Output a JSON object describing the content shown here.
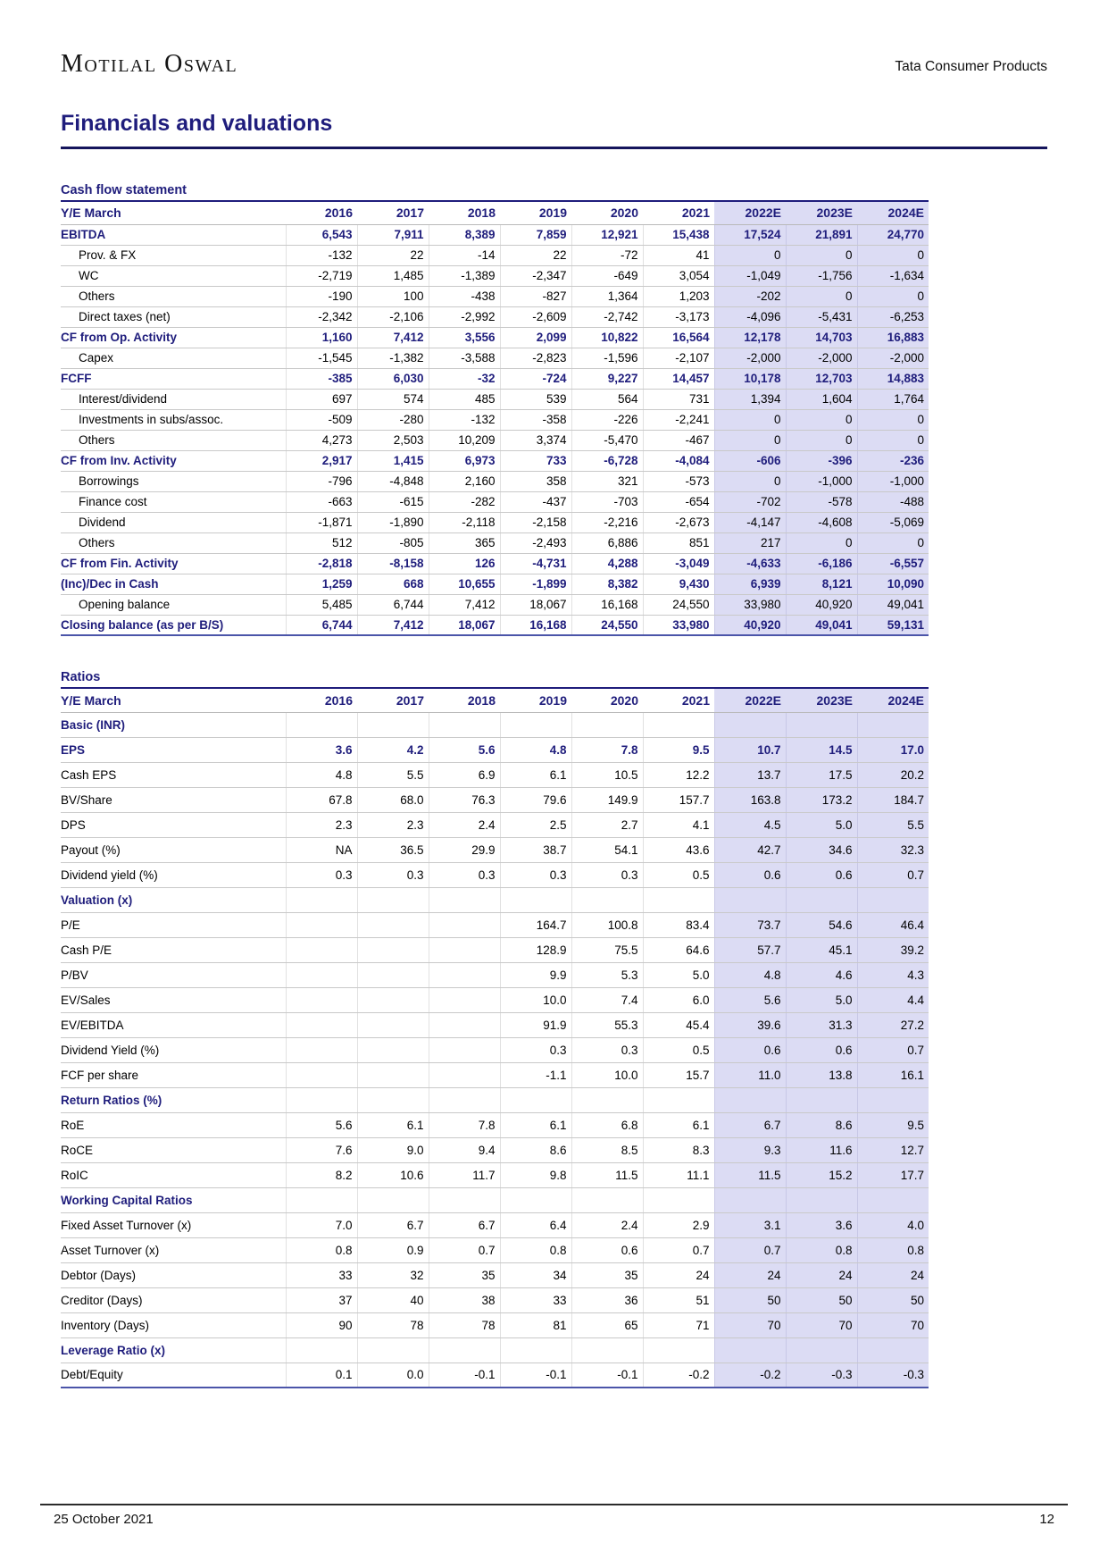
{
  "page": {
    "brand": "Motilal Oswal",
    "product": "Tata Consumer Products",
    "title": "Financials and valuations",
    "footer_date": "25 October 2021",
    "footer_page": "12"
  },
  "colors": {
    "navy_text": "#1f1d7c",
    "estimate_highlight": "#dcdcf4",
    "row_separator": "#c9c9c9",
    "table_bottom_border": "#4b55a9",
    "title_underline": "#15155c"
  },
  "tables": [
    {
      "id": "cashflow",
      "title": "Cash flow statement",
      "header_label": "Y/E March",
      "years": [
        "2016",
        "2017",
        "2018",
        "2019",
        "2020",
        "2021",
        "2022E",
        "2023E",
        "2024E"
      ],
      "highlight_from": 6,
      "rows": [
        {
          "label": "EBITDA",
          "style": "bold",
          "indent": false,
          "values": [
            "6,543",
            "7,911",
            "8,389",
            "7,859",
            "12,921",
            "15,438",
            "17,524",
            "21,891",
            "24,770"
          ]
        },
        {
          "label": "Prov. & FX",
          "style": "normal",
          "indent": true,
          "values": [
            "-132",
            "22",
            "-14",
            "22",
            "-72",
            "41",
            "0",
            "0",
            "0"
          ]
        },
        {
          "label": "WC",
          "style": "normal",
          "indent": true,
          "values": [
            "-2,719",
            "1,485",
            "-1,389",
            "-2,347",
            "-649",
            "3,054",
            "-1,049",
            "-1,756",
            "-1,634"
          ]
        },
        {
          "label": "Others",
          "style": "normal",
          "indent": true,
          "values": [
            "-190",
            "100",
            "-438",
            "-827",
            "1,364",
            "1,203",
            "-202",
            "0",
            "0"
          ]
        },
        {
          "label": "Direct taxes (net)",
          "style": "normal",
          "indent": true,
          "values": [
            "-2,342",
            "-2,106",
            "-2,992",
            "-2,609",
            "-2,742",
            "-3,173",
            "-4,096",
            "-5,431",
            "-6,253"
          ]
        },
        {
          "label": "CF from Op. Activity",
          "style": "bold",
          "indent": false,
          "values": [
            "1,160",
            "7,412",
            "3,556",
            "2,099",
            "10,822",
            "16,564",
            "12,178",
            "14,703",
            "16,883"
          ]
        },
        {
          "label": "Capex",
          "style": "normal",
          "indent": true,
          "values": [
            "-1,545",
            "-1,382",
            "-3,588",
            "-2,823",
            "-1,596",
            "-2,107",
            "-2,000",
            "-2,000",
            "-2,000"
          ]
        },
        {
          "label": "FCFF",
          "style": "bold",
          "indent": false,
          "values": [
            "-385",
            "6,030",
            "-32",
            "-724",
            "9,227",
            "14,457",
            "10,178",
            "12,703",
            "14,883"
          ]
        },
        {
          "label": "Interest/dividend",
          "style": "normal",
          "indent": true,
          "values": [
            "697",
            "574",
            "485",
            "539",
            "564",
            "731",
            "1,394",
            "1,604",
            "1,764"
          ]
        },
        {
          "label": "Investments in subs/assoc.",
          "style": "normal",
          "indent": true,
          "values": [
            "-509",
            "-280",
            "-132",
            "-358",
            "-226",
            "-2,241",
            "0",
            "0",
            "0"
          ]
        },
        {
          "label": "Others",
          "style": "normal",
          "indent": true,
          "values": [
            "4,273",
            "2,503",
            "10,209",
            "3,374",
            "-5,470",
            "-467",
            "0",
            "0",
            "0"
          ]
        },
        {
          "label": "CF from Inv. Activity",
          "style": "bold",
          "indent": false,
          "values": [
            "2,917",
            "1,415",
            "6,973",
            "733",
            "-6,728",
            "-4,084",
            "-606",
            "-396",
            "-236"
          ]
        },
        {
          "label": "Borrowings",
          "style": "normal",
          "indent": true,
          "values": [
            "-796",
            "-4,848",
            "2,160",
            "358",
            "321",
            "-573",
            "0",
            "-1,000",
            "-1,000"
          ]
        },
        {
          "label": "Finance cost",
          "style": "normal",
          "indent": true,
          "values": [
            "-663",
            "-615",
            "-282",
            "-437",
            "-703",
            "-654",
            "-702",
            "-578",
            "-488"
          ]
        },
        {
          "label": "Dividend",
          "style": "normal",
          "indent": true,
          "values": [
            "-1,871",
            "-1,890",
            "-2,118",
            "-2,158",
            "-2,216",
            "-2,673",
            "-4,147",
            "-4,608",
            "-5,069"
          ]
        },
        {
          "label": "Others",
          "style": "normal",
          "indent": true,
          "values": [
            "512",
            "-805",
            "365",
            "-2,493",
            "6,886",
            "851",
            "217",
            "0",
            "0"
          ]
        },
        {
          "label": "CF from Fin. Activity",
          "style": "bold",
          "indent": false,
          "values": [
            "-2,818",
            "-8,158",
            "126",
            "-4,731",
            "4,288",
            "-3,049",
            "-4,633",
            "-6,186",
            "-6,557"
          ]
        },
        {
          "label": "(Inc)/Dec in Cash",
          "style": "bold",
          "indent": false,
          "values": [
            "1,259",
            "668",
            "10,655",
            "-1,899",
            "8,382",
            "9,430",
            "6,939",
            "8,121",
            "10,090"
          ]
        },
        {
          "label": "Opening balance",
          "style": "normal",
          "indent": true,
          "values": [
            "5,485",
            "6,744",
            "7,412",
            "18,067",
            "16,168",
            "24,550",
            "33,980",
            "40,920",
            "49,041"
          ]
        },
        {
          "label": "Closing balance (as per B/S)",
          "style": "bold",
          "indent": false,
          "values": [
            "6,744",
            "7,412",
            "18,067",
            "16,168",
            "24,550",
            "33,980",
            "40,920",
            "49,041",
            "59,131"
          ]
        }
      ]
    },
    {
      "id": "ratios",
      "title": "Ratios",
      "header_label": "Y/E March",
      "years": [
        "2016",
        "2017",
        "2018",
        "2019",
        "2020",
        "2021",
        "2022E",
        "2023E",
        "2024E"
      ],
      "highlight_from": 6,
      "rows": [
        {
          "label": "Basic (INR)",
          "style": "section",
          "indent": false,
          "values": [
            "",
            "",
            "",
            "",
            "",
            "",
            "",
            "",
            ""
          ]
        },
        {
          "label": "EPS",
          "style": "bold",
          "indent": false,
          "values": [
            "3.6",
            "4.2",
            "5.6",
            "4.8",
            "7.8",
            "9.5",
            "10.7",
            "14.5",
            "17.0"
          ]
        },
        {
          "label": "Cash EPS",
          "style": "normal",
          "indent": false,
          "values": [
            "4.8",
            "5.5",
            "6.9",
            "6.1",
            "10.5",
            "12.2",
            "13.7",
            "17.5",
            "20.2"
          ]
        },
        {
          "label": "BV/Share",
          "style": "normal",
          "indent": false,
          "values": [
            "67.8",
            "68.0",
            "76.3",
            "79.6",
            "149.9",
            "157.7",
            "163.8",
            "173.2",
            "184.7"
          ]
        },
        {
          "label": "DPS",
          "style": "normal",
          "indent": false,
          "values": [
            "2.3",
            "2.3",
            "2.4",
            "2.5",
            "2.7",
            "4.1",
            "4.5",
            "5.0",
            "5.5"
          ]
        },
        {
          "label": "Payout (%)",
          "style": "normal",
          "indent": false,
          "values": [
            "NA",
            "36.5",
            "29.9",
            "38.7",
            "54.1",
            "43.6",
            "42.7",
            "34.6",
            "32.3"
          ]
        },
        {
          "label": "Dividend yield (%)",
          "style": "normal",
          "indent": false,
          "values": [
            "0.3",
            "0.3",
            "0.3",
            "0.3",
            "0.3",
            "0.5",
            "0.6",
            "0.6",
            "0.7"
          ]
        },
        {
          "label": "Valuation (x)",
          "style": "section",
          "indent": false,
          "values": [
            "",
            "",
            "",
            "",
            "",
            "",
            "",
            "",
            ""
          ]
        },
        {
          "label": "P/E",
          "style": "normal",
          "indent": false,
          "values": [
            "",
            "",
            "",
            "164.7",
            "100.8",
            "83.4",
            "73.7",
            "54.6",
            "46.4"
          ]
        },
        {
          "label": "Cash P/E",
          "style": "normal",
          "indent": false,
          "values": [
            "",
            "",
            "",
            "128.9",
            "75.5",
            "64.6",
            "57.7",
            "45.1",
            "39.2"
          ]
        },
        {
          "label": "P/BV",
          "style": "normal",
          "indent": false,
          "values": [
            "",
            "",
            "",
            "9.9",
            "5.3",
            "5.0",
            "4.8",
            "4.6",
            "4.3"
          ]
        },
        {
          "label": "EV/Sales",
          "style": "normal",
          "indent": false,
          "values": [
            "",
            "",
            "",
            "10.0",
            "7.4",
            "6.0",
            "5.6",
            "5.0",
            "4.4"
          ]
        },
        {
          "label": "EV/EBITDA",
          "style": "normal",
          "indent": false,
          "values": [
            "",
            "",
            "",
            "91.9",
            "55.3",
            "45.4",
            "39.6",
            "31.3",
            "27.2"
          ]
        },
        {
          "label": "Dividend Yield (%)",
          "style": "normal",
          "indent": false,
          "values": [
            "",
            "",
            "",
            "0.3",
            "0.3",
            "0.5",
            "0.6",
            "0.6",
            "0.7"
          ]
        },
        {
          "label": "FCF per share",
          "style": "normal",
          "indent": false,
          "values": [
            "",
            "",
            "",
            "-1.1",
            "10.0",
            "15.7",
            "11.0",
            "13.8",
            "16.1"
          ]
        },
        {
          "label": "Return Ratios (%)",
          "style": "section",
          "indent": false,
          "values": [
            "",
            "",
            "",
            "",
            "",
            "",
            "",
            "",
            ""
          ]
        },
        {
          "label": "RoE",
          "style": "normal",
          "indent": false,
          "values": [
            "5.6",
            "6.1",
            "7.8",
            "6.1",
            "6.8",
            "6.1",
            "6.7",
            "8.6",
            "9.5"
          ]
        },
        {
          "label": "RoCE",
          "style": "normal",
          "indent": false,
          "values": [
            "7.6",
            "9.0",
            "9.4",
            "8.6",
            "8.5",
            "8.3",
            "9.3",
            "11.6",
            "12.7"
          ]
        },
        {
          "label": "RoIC",
          "style": "normal",
          "indent": false,
          "values": [
            "8.2",
            "10.6",
            "11.7",
            "9.8",
            "11.5",
            "11.1",
            "11.5",
            "15.2",
            "17.7"
          ]
        },
        {
          "label": "Working Capital Ratios",
          "style": "section",
          "indent": false,
          "values": [
            "",
            "",
            "",
            "",
            "",
            "",
            "",
            "",
            ""
          ]
        },
        {
          "label": "Fixed Asset Turnover (x)",
          "style": "normal",
          "indent": false,
          "values": [
            "7.0",
            "6.7",
            "6.7",
            "6.4",
            "2.4",
            "2.9",
            "3.1",
            "3.6",
            "4.0"
          ]
        },
        {
          "label": "Asset Turnover (x)",
          "style": "normal",
          "indent": false,
          "values": [
            "0.8",
            "0.9",
            "0.7",
            "0.8",
            "0.6",
            "0.7",
            "0.7",
            "0.8",
            "0.8"
          ]
        },
        {
          "label": "Debtor (Days)",
          "style": "normal",
          "indent": false,
          "values": [
            "33",
            "32",
            "35",
            "34",
            "35",
            "24",
            "24",
            "24",
            "24"
          ]
        },
        {
          "label": "Creditor (Days)",
          "style": "normal",
          "indent": false,
          "values": [
            "37",
            "40",
            "38",
            "33",
            "36",
            "51",
            "50",
            "50",
            "50"
          ]
        },
        {
          "label": "Inventory (Days)",
          "style": "normal",
          "indent": false,
          "values": [
            "90",
            "78",
            "78",
            "81",
            "65",
            "71",
            "70",
            "70",
            "70"
          ]
        },
        {
          "label": "Leverage Ratio (x)",
          "style": "section",
          "indent": false,
          "values": [
            "",
            "",
            "",
            "",
            "",
            "",
            "",
            "",
            ""
          ]
        },
        {
          "label": "Debt/Equity",
          "style": "normal",
          "indent": false,
          "values": [
            "0.1",
            "0.0",
            "-0.1",
            "-0.1",
            "-0.1",
            "-0.2",
            "-0.2",
            "-0.3",
            "-0.3"
          ]
        }
      ]
    }
  ]
}
